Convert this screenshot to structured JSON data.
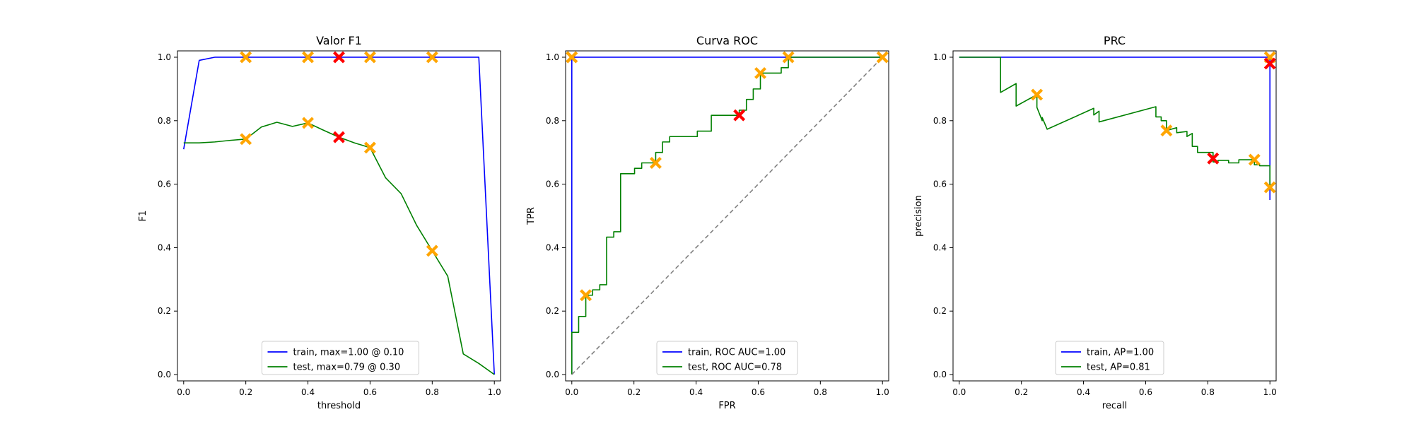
{
  "chart_data": [
    {
      "type": "line",
      "title": "Valor F1",
      "xlabel": "threshold",
      "ylabel": "F1",
      "xlim": [
        -0.02,
        1.02
      ],
      "ylim": [
        -0.02,
        1.02
      ],
      "xticks": [
        0.0,
        0.2,
        0.4,
        0.6,
        0.8,
        1.0
      ],
      "yticks": [
        0.0,
        0.2,
        0.4,
        0.6,
        0.8,
        1.0
      ],
      "legend_location": "lower-center",
      "series": [
        {
          "name": "train, max=1.00 @ 0.10",
          "color": "#0000ff",
          "x": [
            0.0,
            0.05,
            0.1,
            0.15,
            0.2,
            0.25,
            0.3,
            0.35,
            0.4,
            0.45,
            0.5,
            0.55,
            0.6,
            0.65,
            0.7,
            0.75,
            0.8,
            0.85,
            0.9,
            0.95,
            1.0
          ],
          "y": [
            0.71,
            0.99,
            1.0,
            1.0,
            1.0,
            1.0,
            1.0,
            1.0,
            1.0,
            1.0,
            1.0,
            1.0,
            1.0,
            1.0,
            1.0,
            1.0,
            1.0,
            1.0,
            1.0,
            1.0,
            0.0
          ]
        },
        {
          "name": "test, max=0.79 @ 0.30",
          "color": "#008000",
          "x": [
            0.0,
            0.05,
            0.1,
            0.15,
            0.2,
            0.25,
            0.3,
            0.35,
            0.4,
            0.45,
            0.5,
            0.55,
            0.6,
            0.65,
            0.7,
            0.75,
            0.8,
            0.85,
            0.9,
            0.95,
            1.0
          ],
          "y": [
            0.73,
            0.73,
            0.733,
            0.738,
            0.742,
            0.78,
            0.795,
            0.782,
            0.793,
            0.77,
            0.748,
            0.73,
            0.715,
            0.62,
            0.57,
            0.47,
            0.39,
            0.31,
            0.065,
            0.035,
            0.0
          ]
        }
      ],
      "markers": [
        {
          "x": 0.2,
          "y": 1.0,
          "color": "#ffa500"
        },
        {
          "x": 0.4,
          "y": 1.0,
          "color": "#ffa500"
        },
        {
          "x": 0.5,
          "y": 1.0,
          "color": "#ff0000"
        },
        {
          "x": 0.6,
          "y": 1.0,
          "color": "#ffa500"
        },
        {
          "x": 0.8,
          "y": 1.0,
          "color": "#ffa500"
        },
        {
          "x": 0.2,
          "y": 0.742,
          "color": "#ffa500"
        },
        {
          "x": 0.4,
          "y": 0.793,
          "color": "#ffa500"
        },
        {
          "x": 0.5,
          "y": 0.748,
          "color": "#ff0000"
        },
        {
          "x": 0.6,
          "y": 0.715,
          "color": "#ffa500"
        },
        {
          "x": 0.8,
          "y": 0.39,
          "color": "#ffa500"
        }
      ]
    },
    {
      "type": "line",
      "title": "Curva ROC",
      "xlabel": "FPR",
      "ylabel": "TPR",
      "xlim": [
        -0.02,
        1.02
      ],
      "ylim": [
        -0.02,
        1.02
      ],
      "xticks": [
        0.0,
        0.2,
        0.4,
        0.6,
        0.8,
        1.0
      ],
      "yticks": [
        0.0,
        0.2,
        0.4,
        0.6,
        0.8,
        1.0
      ],
      "legend_location": "lower-center",
      "series": [
        {
          "name": "train, ROC AUC=1.00",
          "color": "#0000ff",
          "x": [
            0.0,
            0.0,
            0.0,
            1.0
          ],
          "y": [
            0.0,
            0.61,
            1.0,
            1.0
          ]
        },
        {
          "name": "test, ROC AUC=0.78",
          "color": "#008000",
          "x": [
            0.0,
            0.0,
            0.0,
            0.022,
            0.022,
            0.045,
            0.045,
            0.067,
            0.067,
            0.09,
            0.09,
            0.112,
            0.112,
            0.135,
            0.135,
            0.157,
            0.157,
            0.202,
            0.202,
            0.225,
            0.225,
            0.27,
            0.27,
            0.292,
            0.292,
            0.315,
            0.315,
            0.404,
            0.404,
            0.449,
            0.449,
            0.539,
            0.539,
            0.562,
            0.562,
            0.584,
            0.584,
            0.607,
            0.607,
            0.674,
            0.674,
            0.697,
            0.697,
            1.0
          ],
          "y": [
            0.0,
            0.0,
            0.133,
            0.133,
            0.183,
            0.183,
            0.25,
            0.25,
            0.267,
            0.267,
            0.283,
            0.283,
            0.433,
            0.433,
            0.45,
            0.45,
            0.633,
            0.633,
            0.65,
            0.65,
            0.667,
            0.667,
            0.7,
            0.7,
            0.733,
            0.733,
            0.75,
            0.75,
            0.767,
            0.767,
            0.817,
            0.817,
            0.833,
            0.833,
            0.867,
            0.867,
            0.9,
            0.9,
            0.95,
            0.95,
            0.967,
            0.967,
            1.0,
            1.0
          ]
        },
        {
          "name": "",
          "color": "#808080",
          "dashed": true,
          "x": [
            0.0,
            1.0
          ],
          "y": [
            0.0,
            1.0
          ]
        }
      ],
      "markers": [
        {
          "x": 0.0,
          "y": 1.0,
          "color": "#ffa500"
        },
        {
          "x": 0.0,
          "y": 1.0,
          "color": "#ffa500"
        },
        {
          "x": 0.045,
          "y": 0.25,
          "color": "#ffa500"
        },
        {
          "x": 0.27,
          "y": 0.667,
          "color": "#ffa500"
        },
        {
          "x": 0.539,
          "y": 0.817,
          "color": "#ff0000"
        },
        {
          "x": 0.607,
          "y": 0.95,
          "color": "#ffa500"
        },
        {
          "x": 0.697,
          "y": 1.0,
          "color": "#ffa500"
        },
        {
          "x": 1.0,
          "y": 1.0,
          "color": "#ffa500"
        }
      ]
    },
    {
      "type": "line",
      "title": "PRC",
      "xlabel": "recall",
      "ylabel": "precision",
      "xlim": [
        -0.02,
        1.02
      ],
      "ylim": [
        -0.02,
        1.02
      ],
      "xticks": [
        0.0,
        0.2,
        0.4,
        0.6,
        0.8,
        1.0
      ],
      "yticks": [
        0.0,
        0.2,
        0.4,
        0.6,
        0.8,
        1.0
      ],
      "legend_location": "lower-center",
      "series": [
        {
          "name": "train, AP=1.00",
          "color": "#0000ff",
          "x": [
            0.0,
            1.0,
            1.0
          ],
          "y": [
            1.0,
            1.0,
            0.55
          ]
        },
        {
          "name": "test, AP=0.81",
          "color": "#008000",
          "x": [
            0.0,
            0.133,
            0.133,
            0.183,
            0.183,
            0.25,
            0.25,
            0.267,
            0.267,
            0.283,
            0.283,
            0.433,
            0.433,
            0.45,
            0.45,
            0.633,
            0.633,
            0.65,
            0.65,
            0.667,
            0.667,
            0.7,
            0.7,
            0.733,
            0.733,
            0.75,
            0.75,
            0.767,
            0.767,
            0.817,
            0.817,
            0.833,
            0.833,
            0.867,
            0.867,
            0.9,
            0.9,
            0.95,
            0.95,
            0.967,
            0.967,
            1.0,
            1.0
          ],
          "y": [
            1.0,
            1.0,
            0.889,
            0.917,
            0.846,
            0.882,
            0.842,
            0.8,
            0.81,
            0.773,
            0.773,
            0.839,
            0.818,
            0.83,
            0.796,
            0.844,
            0.812,
            0.812,
            0.8,
            0.8,
            0.769,
            0.778,
            0.762,
            0.766,
            0.75,
            0.76,
            0.719,
            0.719,
            0.7,
            0.7,
            0.67,
            0.67,
            0.675,
            0.675,
            0.667,
            0.667,
            0.677,
            0.677,
            0.661,
            0.661,
            0.658,
            0.658,
            0.59
          ]
        }
      ],
      "markers": [
        {
          "x": 1.0,
          "y": 1.0,
          "color": "#ffa500"
        },
        {
          "x": 1.0,
          "y": 0.98,
          "color": "#ff0000"
        },
        {
          "x": 0.25,
          "y": 0.882,
          "color": "#ffa500"
        },
        {
          "x": 0.667,
          "y": 0.769,
          "color": "#ffa500"
        },
        {
          "x": 0.817,
          "y": 0.681,
          "color": "#ff0000"
        },
        {
          "x": 0.95,
          "y": 0.677,
          "color": "#ffa500"
        },
        {
          "x": 1.0,
          "y": 0.59,
          "color": "#ffa500"
        }
      ]
    }
  ]
}
